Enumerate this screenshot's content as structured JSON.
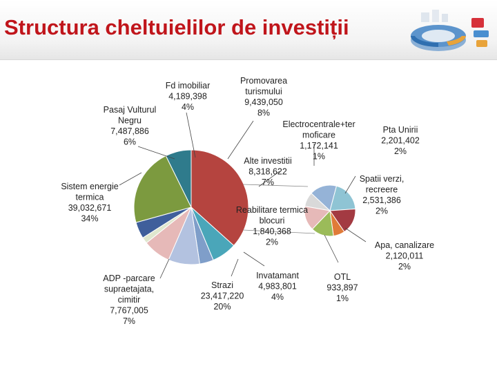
{
  "title": "Structura cheltuielilor de investiții",
  "chart_data": {
    "type": "pie",
    "main": [
      {
        "lines": [
          "Sistem energie",
          "termica",
          "39,032,671",
          "34%"
        ],
        "value": 39032671,
        "color": "#b5443f"
      },
      {
        "lines": [
          "Pasaj Vulturul",
          "Negru",
          "7,487,886",
          "6%"
        ],
        "value": 7487886,
        "color": "#4aa6b9"
      },
      {
        "lines": [
          "Fd imobiliar",
          "4,189,398",
          "4%"
        ],
        "value": 4189398,
        "color": "#7f9ec9"
      },
      {
        "lines": [
          "Promovarea",
          "turismului",
          "9,439,050",
          "8%"
        ],
        "value": 9439050,
        "color": "#b3c2e0"
      },
      {
        "lines": [
          "Alte investitii",
          "8,318,622",
          "7%"
        ],
        "value": 8318622,
        "color": "#e6b9b8"
      },
      {
        "lines": [
          "Reabilitare termica",
          "blocuri",
          "1,840,368",
          "2%"
        ],
        "value": 1840368,
        "color": "#dfe7ce"
      },
      {
        "lines": [
          "Invatamant",
          "4,983,801",
          "4%"
        ],
        "value": 4983801,
        "color": "#3f5f9b"
      },
      {
        "lines": [
          "Strazi",
          "23,417,220",
          "20%"
        ],
        "value": 23417220,
        "color": "#7c9a3f"
      },
      {
        "lines": [
          "ADP -parcare",
          "supraetajata,",
          "cimitir",
          "7,767,005",
          "7%"
        ],
        "value": 7767005,
        "color": "#2f7b8c"
      }
    ],
    "secondary": [
      {
        "lines": [
          "Electrocentrale+ter",
          "moficare",
          "1,172,141",
          "1%"
        ],
        "value": 1172141,
        "color": "#d9d9d9"
      },
      {
        "lines": [
          "Pta Unirii",
          "2,201,402",
          "2%"
        ],
        "value": 2201402,
        "color": "#95b3d7"
      },
      {
        "lines": [
          "Spatii verzi,",
          "recreere",
          "2,531,386",
          "2%"
        ],
        "value": 2531386,
        "color": "#8fc4d4"
      },
      {
        "lines": [
          "Apa, canalizare",
          "2,120,011",
          "2%"
        ],
        "value": 2120011,
        "color": "#a33a42"
      },
      {
        "lines": [
          "OTL",
          "933,897",
          "1%"
        ],
        "value": 933897,
        "color": "#e07b39"
      },
      {
        "lines": [
          "Reabilitare termica",
          "blocuri",
          "1,840,368",
          "2%"
        ],
        "value": 1840368,
        "color": "#9bbb59"
      },
      {
        "lines": [],
        "value": 2000000,
        "color": "#e6b9b8"
      }
    ]
  }
}
